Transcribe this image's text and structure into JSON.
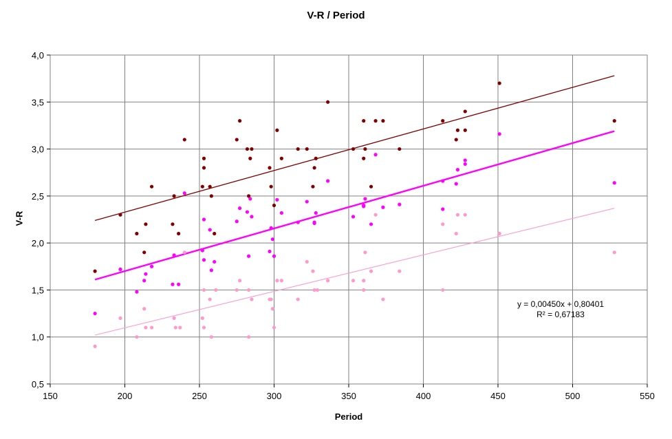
{
  "chart_data": {
    "type": "scatter",
    "title": "V-R / Period",
    "xlabel": "Period",
    "ylabel": "V-R",
    "xlim": [
      150,
      550
    ],
    "ylim": [
      0.5,
      4.0
    ],
    "x_ticks": [
      "150",
      "200",
      "250",
      "300",
      "350",
      "400",
      "450",
      "500",
      "550"
    ],
    "y_ticks": [
      "0,5",
      "1,0",
      "1,5",
      "2,0",
      "2,5",
      "3,0",
      "3,5",
      "4,0"
    ],
    "grid": true,
    "colors": {
      "dark": "#800000",
      "magenta": "#ff00ff",
      "pink": "#ff99cc",
      "grid": "#808080"
    },
    "annotation": {
      "equation": "y = 0,00450x + 0,80401",
      "r_squared": "R² = 0,67183"
    },
    "series": [
      {
        "color": "dark",
        "points": [
          [
            180,
            1.7
          ],
          [
            197,
            2.3
          ],
          [
            208,
            2.1
          ],
          [
            213,
            1.9
          ],
          [
            214,
            2.2
          ],
          [
            218,
            2.6
          ],
          [
            232,
            2.2
          ],
          [
            233,
            2.5
          ],
          [
            236,
            2.1
          ],
          [
            240,
            3.1
          ],
          [
            252,
            2.6
          ],
          [
            253,
            2.9
          ],
          [
            253,
            2.8
          ],
          [
            257,
            2.6
          ],
          [
            258,
            2.5
          ],
          [
            260,
            2.1
          ],
          [
            275,
            3.1
          ],
          [
            277,
            3.3
          ],
          [
            282,
            3.0
          ],
          [
            283,
            2.5
          ],
          [
            284,
            2.9
          ],
          [
            285,
            3.0
          ],
          [
            297,
            2.8
          ],
          [
            298,
            2.6
          ],
          [
            300,
            2.4
          ],
          [
            302,
            3.2
          ],
          [
            305,
            2.9
          ],
          [
            316,
            3.0
          ],
          [
            322,
            3.0
          ],
          [
            326,
            2.6
          ],
          [
            327,
            2.8
          ],
          [
            328,
            2.9
          ],
          [
            336,
            3.5
          ],
          [
            353,
            3.0
          ],
          [
            360,
            3.3
          ],
          [
            360,
            2.9
          ],
          [
            361,
            3.0
          ],
          [
            365,
            2.6
          ],
          [
            368,
            3.3
          ],
          [
            373,
            3.3
          ],
          [
            384,
            3.0
          ],
          [
            413,
            3.3
          ],
          [
            422,
            3.1
          ],
          [
            423,
            3.2
          ],
          [
            428,
            3.4
          ],
          [
            428,
            3.2
          ],
          [
            451,
            3.7
          ],
          [
            528,
            3.3
          ]
        ],
        "trend": [
          [
            180,
            2.24
          ],
          [
            528,
            3.78
          ]
        ]
      },
      {
        "color": "magenta",
        "points": [
          [
            180,
            1.25
          ],
          [
            197,
            1.72
          ],
          [
            208,
            1.48
          ],
          [
            213,
            1.6
          ],
          [
            214,
            1.67
          ],
          [
            218,
            1.75
          ],
          [
            232,
            1.56
          ],
          [
            233,
            1.87
          ],
          [
            236,
            1.56
          ],
          [
            240,
            2.53
          ],
          [
            252,
            1.92
          ],
          [
            253,
            2.25
          ],
          [
            253,
            1.82
          ],
          [
            257,
            2.14
          ],
          [
            258,
            1.71
          ],
          [
            260,
            1.8
          ],
          [
            275,
            2.23
          ],
          [
            277,
            2.37
          ],
          [
            282,
            2.33
          ],
          [
            283,
            1.86
          ],
          [
            284,
            2.47
          ],
          [
            285,
            2.28
          ],
          [
            297,
            1.91
          ],
          [
            298,
            2.16
          ],
          [
            299,
            2.04
          ],
          [
            300,
            1.86
          ],
          [
            302,
            2.46
          ],
          [
            305,
            2.32
          ],
          [
            316,
            2.22
          ],
          [
            322,
            2.44
          ],
          [
            327,
            2.21
          ],
          [
            327,
            2.22
          ],
          [
            328,
            2.32
          ],
          [
            336,
            2.66
          ],
          [
            353,
            2.28
          ],
          [
            360,
            2.39
          ],
          [
            360,
            2.4
          ],
          [
            361,
            2.47
          ],
          [
            365,
            2.2
          ],
          [
            368,
            2.94
          ],
          [
            373,
            2.38
          ],
          [
            384,
            2.41
          ],
          [
            413,
            2.36
          ],
          [
            413,
            2.66
          ],
          [
            422,
            2.63
          ],
          [
            423,
            2.78
          ],
          [
            428,
            2.84
          ],
          [
            428,
            2.88
          ],
          [
            451,
            3.16
          ],
          [
            528,
            2.64
          ]
        ],
        "trend": [
          [
            180,
            1.61
          ],
          [
            528,
            3.19
          ]
        ]
      },
      {
        "color": "pink",
        "points": [
          [
            180,
            0.9
          ],
          [
            197,
            1.2
          ],
          [
            208,
            1.0
          ],
          [
            213,
            1.3
          ],
          [
            214,
            1.1
          ],
          [
            218,
            1.1
          ],
          [
            233,
            1.2
          ],
          [
            234,
            1.1
          ],
          [
            237,
            1.1
          ],
          [
            240,
            1.9
          ],
          [
            252,
            1.2
          ],
          [
            253,
            1.1
          ],
          [
            253,
            1.5
          ],
          [
            257,
            1.4
          ],
          [
            258,
            1.0
          ],
          [
            261,
            1.5
          ],
          [
            275,
            1.5
          ],
          [
            277,
            1.6
          ],
          [
            283,
            1.5
          ],
          [
            283,
            1.0
          ],
          [
            285,
            1.4
          ],
          [
            297,
            1.4
          ],
          [
            298,
            1.4
          ],
          [
            299,
            1.3
          ],
          [
            300,
            1.1
          ],
          [
            302,
            1.6
          ],
          [
            305,
            1.6
          ],
          [
            316,
            1.4
          ],
          [
            322,
            1.8
          ],
          [
            326,
            1.7
          ],
          [
            327,
            1.5
          ],
          [
            329,
            1.5
          ],
          [
            336,
            1.6
          ],
          [
            353,
            1.6
          ],
          [
            360,
            1.5
          ],
          [
            360,
            1.6
          ],
          [
            361,
            1.9
          ],
          [
            365,
            1.7
          ],
          [
            368,
            2.3
          ],
          [
            373,
            1.4
          ],
          [
            384,
            1.7
          ],
          [
            413,
            1.5
          ],
          [
            413,
            2.2
          ],
          [
            422,
            2.1
          ],
          [
            423,
            2.3
          ],
          [
            428,
            2.3
          ],
          [
            451,
            2.1
          ],
          [
            528,
            1.9
          ]
        ],
        "trend": [
          [
            180,
            1.02
          ],
          [
            528,
            2.37
          ]
        ]
      }
    ]
  }
}
